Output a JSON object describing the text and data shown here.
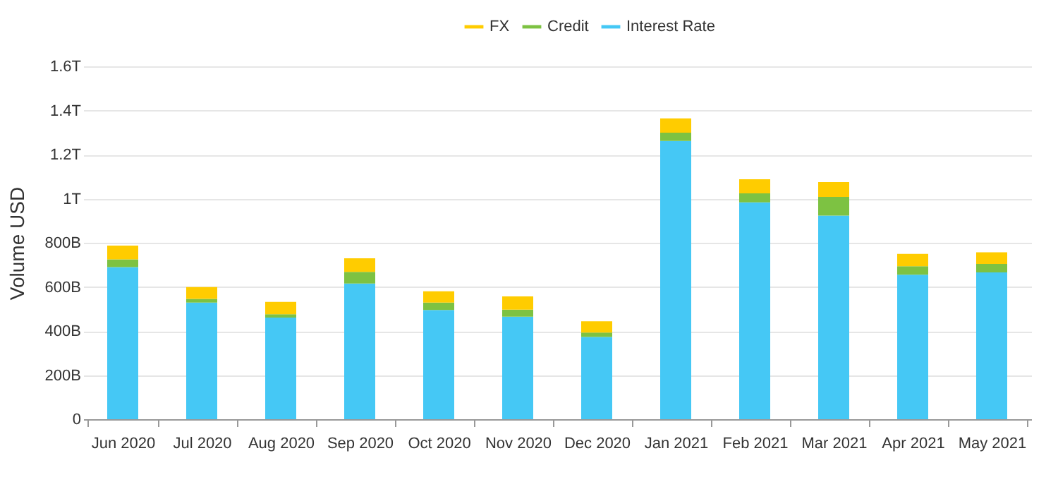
{
  "chart_data": {
    "type": "bar",
    "stacked": true,
    "ylabel": "Volume USD",
    "categories": [
      "Jun 2020",
      "Jul 2020",
      "Aug 2020",
      "Sep 2020",
      "Oct 2020",
      "Nov 2020",
      "Dec 2020",
      "Jan 2021",
      "Feb 2021",
      "Mar 2021",
      "Apr 2021",
      "May 2021"
    ],
    "series": [
      {
        "name": "Interest Rate",
        "color": "#45c8f5",
        "values": [
          690000000000,
          529000000000,
          461000000000,
          615000000000,
          495000000000,
          465000000000,
          373000000000,
          1262000000000,
          983000000000,
          923000000000,
          655000000000,
          666000000000
        ]
      },
      {
        "name": "Credit",
        "color": "#7dc242",
        "values": [
          35000000000,
          17000000000,
          15000000000,
          53000000000,
          34000000000,
          32000000000,
          20000000000,
          37000000000,
          41000000000,
          85000000000,
          39000000000,
          38000000000
        ]
      },
      {
        "name": "FX",
        "color": "#ffcc00",
        "values": [
          62000000000,
          53000000000,
          56000000000,
          62000000000,
          51000000000,
          60000000000,
          51000000000,
          65000000000,
          64000000000,
          67000000000,
          56000000000,
          53000000000
        ]
      }
    ],
    "ylim": [
      0,
      1600000000000
    ],
    "yticks": [
      0,
      {
        "value": 200000000000,
        "label": "200B"
      },
      {
        "value": 400000000000,
        "label": "400B"
      },
      {
        "value": 600000000000,
        "label": "600B"
      },
      {
        "value": 800000000000,
        "label": "800B"
      },
      {
        "value": 1000000000000,
        "label": "1T"
      },
      {
        "value": 1200000000000,
        "label": "1.2T"
      },
      {
        "value": 1400000000000,
        "label": "1.4T"
      },
      {
        "value": 1600000000000,
        "label": "1.6T"
      }
    ],
    "grid": "y",
    "legend": "top"
  }
}
